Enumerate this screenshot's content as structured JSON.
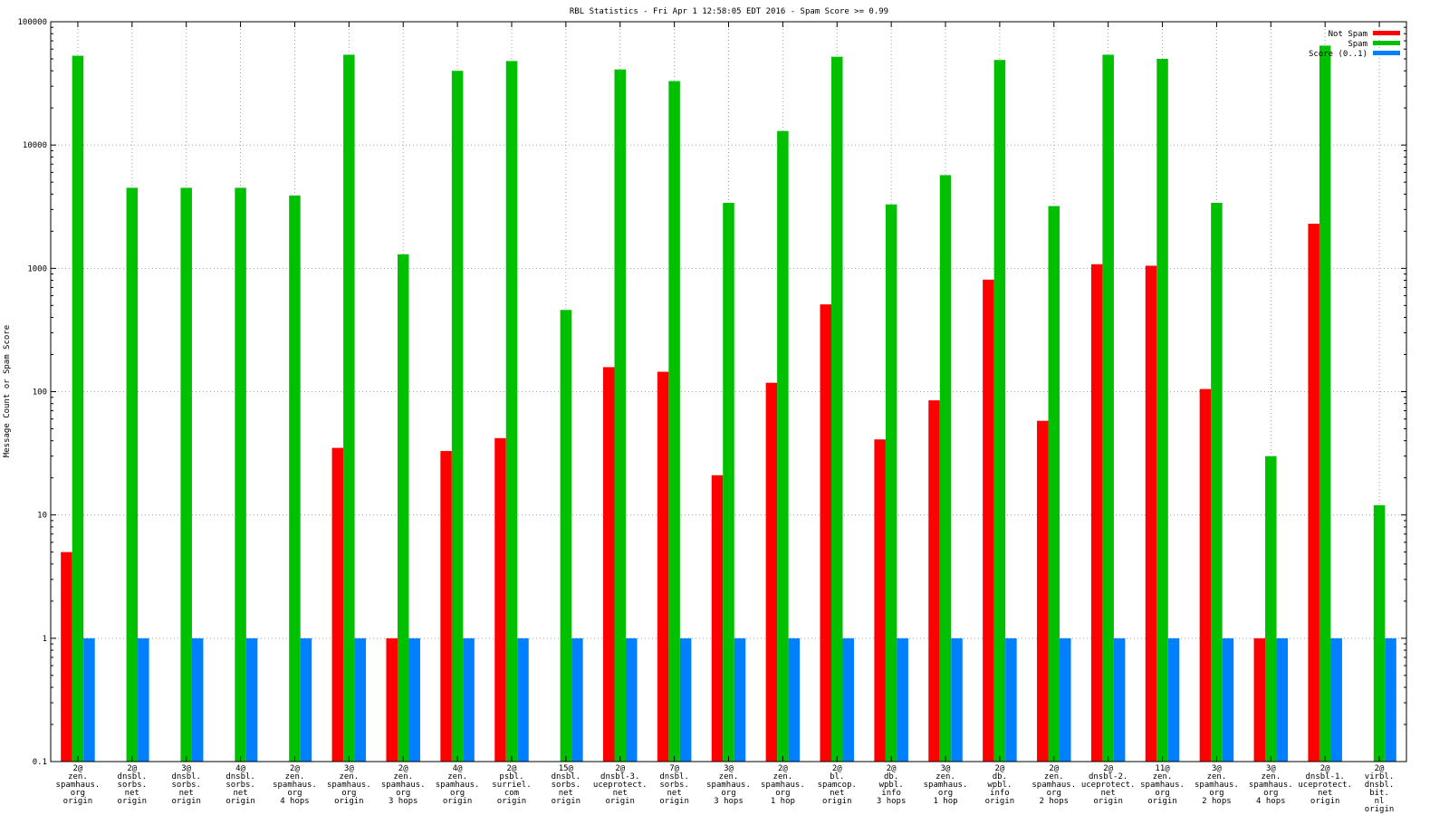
{
  "chart_data": {
    "type": "bar",
    "title": "RBL Statistics - Fri Apr  1 12:58:05 EDT 2016 - Spam Score >= 0.99",
    "xlabel": "",
    "ylabel": "Message Count or Spam Score",
    "yscale": "log",
    "ylim": [
      0.1,
      100000
    ],
    "yticks": [
      "0.1",
      "1",
      "10",
      "100",
      "1000",
      "10000",
      "100000"
    ],
    "grid": true,
    "legend_position": "top-right",
    "categories": [
      [
        "2@",
        "zen.",
        "spamhaus.",
        "org",
        "origin"
      ],
      [
        "2@",
        "dnsbl.",
        "sorbs.",
        "net",
        "origin"
      ],
      [
        "3@",
        "dnsbl.",
        "sorbs.",
        "net",
        "origin"
      ],
      [
        "4@",
        "dnsbl.",
        "sorbs.",
        "net",
        "origin"
      ],
      [
        "2@",
        "zen.",
        "spamhaus.",
        "org",
        "4 hops"
      ],
      [
        "3@",
        "zen.",
        "spamhaus.",
        "org",
        "origin"
      ],
      [
        "2@",
        "zen.",
        "spamhaus.",
        "org",
        "3 hops"
      ],
      [
        "4@",
        "zen.",
        "spamhaus.",
        "org",
        "origin"
      ],
      [
        "2@",
        "psbl.",
        "surriel.",
        "com",
        "origin"
      ],
      [
        "15@",
        "dnsbl.",
        "sorbs.",
        "net",
        "origin"
      ],
      [
        "2@",
        "dnsbl-3.",
        "uceprotect.",
        "net",
        "origin"
      ],
      [
        "7@",
        "dnsbl.",
        "sorbs.",
        "net",
        "origin"
      ],
      [
        "3@",
        "zen.",
        "spamhaus.",
        "org",
        "3 hops"
      ],
      [
        "2@",
        "zen.",
        "spamhaus.",
        "org",
        "1 hop"
      ],
      [
        "2@",
        "bl.",
        "spamcop.",
        "net",
        "origin"
      ],
      [
        "2@",
        "db.",
        "wpbl.",
        "info",
        "3 hops"
      ],
      [
        "3@",
        "zen.",
        "spamhaus.",
        "org",
        "1 hop"
      ],
      [
        "2@",
        "db.",
        "wpbl.",
        "info",
        "origin"
      ],
      [
        "2@",
        "zen.",
        "spamhaus.",
        "org",
        "2 hops"
      ],
      [
        "2@",
        "dnsbl-2.",
        "uceprotect.",
        "net",
        "origin"
      ],
      [
        "11@",
        "zen.",
        "spamhaus.",
        "org",
        "origin"
      ],
      [
        "3@",
        "zen.",
        "spamhaus.",
        "org",
        "2 hops"
      ],
      [
        "3@",
        "zen.",
        "spamhaus.",
        "org",
        "4 hops"
      ],
      [
        "2@",
        "dnsbl-1.",
        "uceprotect.",
        "net",
        "origin"
      ],
      [
        "2@",
        "virbl.",
        "dnsbl.",
        "bit.",
        "nl",
        "origin"
      ]
    ],
    "series": [
      {
        "name": "Not Spam",
        "color": "#ff0000",
        "values": [
          5,
          0,
          0,
          0,
          0,
          35,
          1,
          33,
          42,
          0,
          158,
          145,
          21,
          118,
          510,
          41,
          85,
          810,
          58,
          1080,
          1050,
          105,
          1,
          2300,
          0
        ]
      },
      {
        "name": "Spam",
        "color": "#00c000",
        "values": [
          53000,
          4500,
          4500,
          4500,
          3900,
          54000,
          1300,
          40000,
          48000,
          460,
          41000,
          33000,
          3400,
          13000,
          52000,
          3300,
          5700,
          49000,
          3200,
          54000,
          50000,
          3400,
          30,
          64000,
          12
        ]
      },
      {
        "name": "Score (0..1)",
        "color": "#0080ff",
        "values": [
          1,
          1,
          1,
          1,
          1,
          1,
          1,
          1,
          1,
          1,
          1,
          1,
          1,
          1,
          1,
          1,
          1,
          1,
          1,
          1,
          1,
          1,
          1,
          1,
          1
        ]
      }
    ]
  }
}
